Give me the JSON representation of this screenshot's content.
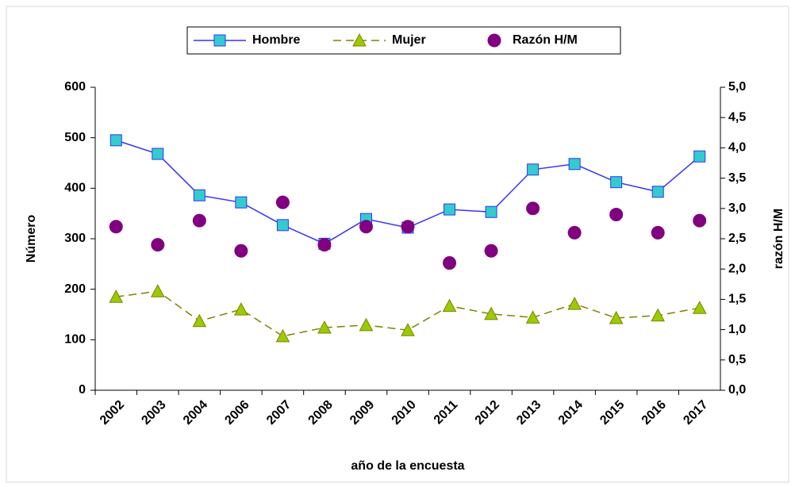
{
  "chart_data": {
    "type": "line",
    "categories": [
      "2002",
      "2003",
      "2004",
      "2006",
      "2007",
      "2008",
      "2009",
      "2010",
      "2011",
      "2012",
      "2013",
      "2014",
      "2015",
      "2016",
      "2017"
    ],
    "series": [
      {
        "name": "Hombre",
        "color": "#3333ff",
        "marker_fill": "#33cccc",
        "marker": "square",
        "line": "solid",
        "values": [
          495,
          468,
          386,
          372,
          327,
          290,
          339,
          322,
          358,
          353,
          437,
          448,
          412,
          393,
          463
        ]
      },
      {
        "name": "Mujer",
        "color": "#808000",
        "marker_fill": "#99cc00",
        "marker": "triangle",
        "line": "dashed",
        "values": [
          185,
          196,
          137,
          160,
          107,
          124,
          129,
          119,
          167,
          151,
          144,
          171,
          143,
          148,
          163
        ]
      },
      {
        "name": "Razón H/M",
        "color": "#800080",
        "marker_fill": "#800080",
        "marker": "circle",
        "line": "none",
        "axis": "y2",
        "values": [
          2.7,
          2.4,
          2.8,
          2.3,
          3.1,
          2.4,
          2.7,
          2.7,
          2.1,
          2.3,
          3.0,
          2.6,
          2.9,
          2.6,
          2.8
        ]
      }
    ],
    "ylabel": "Número",
    "y2label": "razón H/M",
    "xlabel": "año de la encuesta",
    "ylim": [
      0,
      600
    ],
    "yticks": [
      0,
      100,
      200,
      300,
      400,
      500,
      600
    ],
    "y2lim": [
      0,
      5
    ],
    "y2ticks": [
      {
        "value": 0,
        "label": "0,0"
      },
      {
        "value": 0.5,
        "label": "0,5"
      },
      {
        "value": 1,
        "label": "1,0"
      },
      {
        "value": 1.5,
        "label": "1,5"
      },
      {
        "value": 2,
        "label": "2,0"
      },
      {
        "value": 2.5,
        "label": "2,5"
      },
      {
        "value": 3,
        "label": "3,0"
      },
      {
        "value": 3.5,
        "label": "3,5"
      },
      {
        "value": 4,
        "label": "4,0"
      },
      {
        "value": 4.5,
        "label": "4,5"
      },
      {
        "value": 5,
        "label": "5,0"
      }
    ],
    "legend": "top"
  }
}
